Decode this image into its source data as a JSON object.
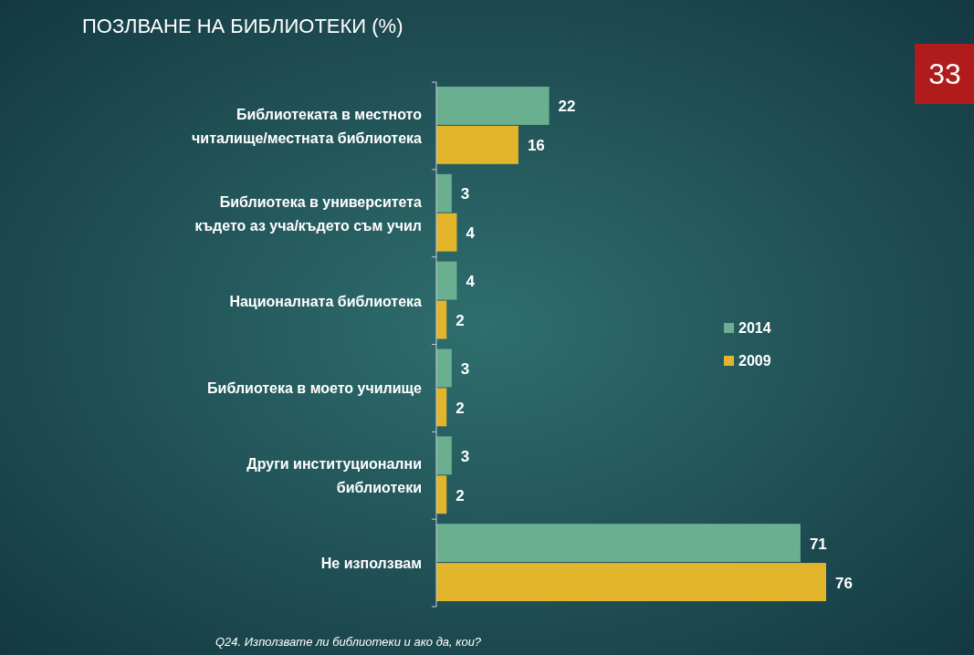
{
  "chart_data": {
    "type": "bar",
    "orientation": "horizontal",
    "title": "ПОЗЛВАНЕ НА БИБЛИОТЕКИ (%)",
    "categories": [
      "Библиотеката в местното читалище/местната библиотека",
      "Библиотека в университета където аз уча/където съм учил",
      "Националната библиотека",
      "Библиотека в моето училище",
      "Други институционални библиотеки",
      "Не използвам"
    ],
    "series": [
      {
        "name": "2014",
        "color": "#6aaf8f",
        "values": [
          22,
          3,
          4,
          3,
          3,
          71
        ]
      },
      {
        "name": "2009",
        "color": "#e3b52a",
        "values": [
          16,
          4,
          2,
          2,
          2,
          76
        ]
      }
    ],
    "data_labels": true,
    "legend": "right",
    "annotations": [
      "33",
      "Q24. Използвате ли библиотеки и ако да, кои?"
    ]
  }
}
